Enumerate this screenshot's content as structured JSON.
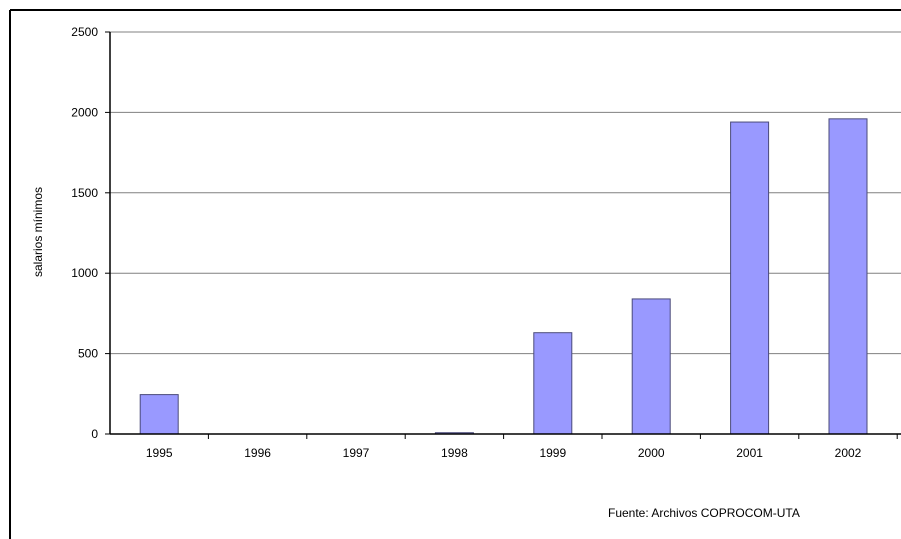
{
  "colors": {
    "bar_fill": "#9999ff",
    "bar_stroke": "#4a4a7a",
    "gridline": "#808080",
    "axis": "#000000",
    "frame": "#000000"
  },
  "chart_data": {
    "type": "bar",
    "categories": [
      "1995",
      "1996",
      "1997",
      "1998",
      "1999",
      "2000",
      "2001",
      "2002"
    ],
    "values": [
      245,
      0,
      0,
      8,
      630,
      840,
      1940,
      1960
    ],
    "ylabel": "salarios mínimos",
    "xlabel": "",
    "ylim": [
      0,
      2500
    ],
    "yticks": [
      "0",
      "500",
      "1000",
      "1500",
      "2000",
      "2500"
    ],
    "grid": true,
    "legend": "none"
  },
  "footer": {
    "source": "Fuente: Archivos COPROCOM-UTA"
  }
}
